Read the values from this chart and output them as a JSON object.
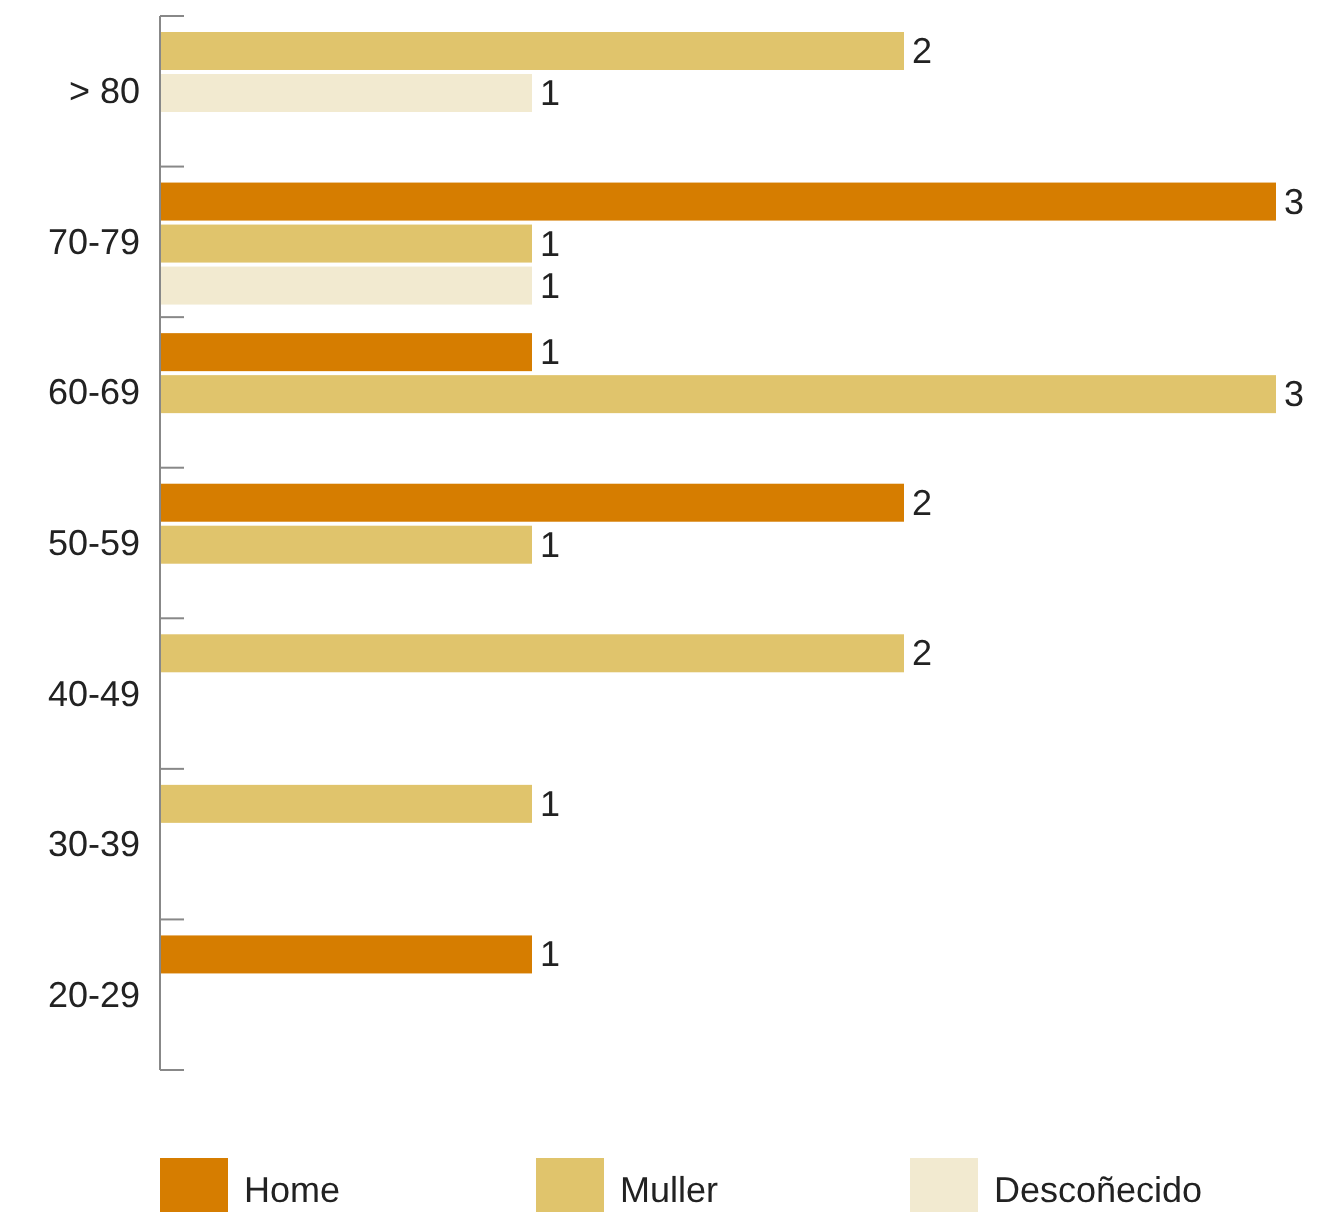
{
  "chart_data": {
    "type": "bar",
    "orientation": "horizontal",
    "categories": [
      "> 80",
      "70-79",
      "60-69",
      "50-59",
      "40-49",
      "30-39",
      "20-29"
    ],
    "series": [
      {
        "name": "Home",
        "color": "#d67d00",
        "values": [
          null,
          3,
          1,
          2,
          null,
          null,
          1
        ]
      },
      {
        "name": "Muller",
        "color": "#e0c46c",
        "values": [
          2,
          1,
          3,
          1,
          2,
          1,
          null
        ]
      },
      {
        "name": "Descoñecido",
        "color": "#f2ead0",
        "values": [
          1,
          1,
          null,
          null,
          null,
          null,
          null
        ]
      }
    ],
    "xlim": [
      0,
      3
    ],
    "data_labels": true,
    "tick_labels": "y",
    "legend": "bottom"
  }
}
